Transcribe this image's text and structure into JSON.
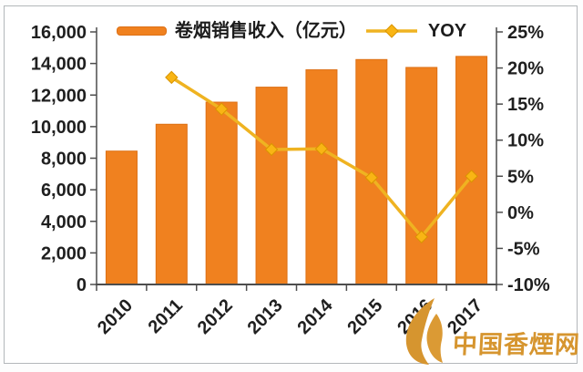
{
  "colors": {
    "bar_fill": "#F0811F",
    "bar_stroke": "#DD7015",
    "line": "#EFB321",
    "marker_fill": "#F9B514",
    "marker_stroke": "#D99400",
    "axis": "#4d4d4d",
    "label_text": "#1f1f1f",
    "watermark_gold": "#D6952F",
    "frame_border": "#b3b7ba"
  },
  "legend": {
    "bars_label": "卷烟销售收入（亿元）",
    "line_label": "YOY"
  },
  "watermark": {
    "text": "中国香煙网",
    "logo": "gold-leaf-logo"
  },
  "chart_data": {
    "type": "bar",
    "subtype": "combo bar+line, dual axis",
    "categories": [
      "2010",
      "2011",
      "2012",
      "2013",
      "2014",
      "2015",
      "2016",
      "2017"
    ],
    "series": [
      {
        "name": "卷烟销售收入（亿元）",
        "type": "bar",
        "axis": "left",
        "color": "#F0811F",
        "values": [
          8450,
          10150,
          11550,
          12500,
          13600,
          14250,
          13750,
          14450
        ]
      },
      {
        "name": "YOY",
        "type": "line",
        "axis": "right",
        "color": "#EFB321",
        "marker": "diamond",
        "values": [
          null,
          18.7,
          14.3,
          8.7,
          8.8,
          4.8,
          -3.4,
          5.0
        ]
      }
    ],
    "left_axis": {
      "min": 0,
      "max": 16000,
      "step": 2000,
      "tick_labels": [
        "16,000",
        "14,000",
        "12,000",
        "10,000",
        "8,000",
        "6,000",
        "4,000",
        "2,000",
        "0"
      ]
    },
    "right_axis": {
      "min": -10,
      "max": 25,
      "step": 5,
      "tick_labels": [
        "25%",
        "20%",
        "15%",
        "10%",
        "5%",
        "0%",
        "-5%",
        "-10%"
      ]
    },
    "grid": false,
    "legend_position": "top",
    "title": ""
  }
}
